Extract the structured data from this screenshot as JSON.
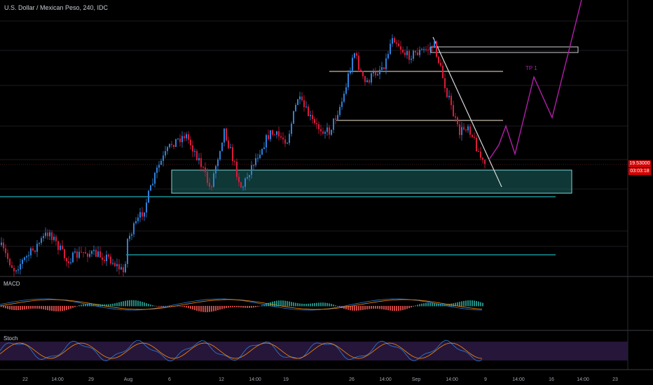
{
  "header": {
    "title": "U.S. Dollar / Mexican Peso, 240, IDC"
  },
  "price_axis": {
    "last_price": "19.53000",
    "countdown": "03:03:18"
  },
  "panels": {
    "macd": "MACD",
    "stoch": "Stoch"
  },
  "annotation": {
    "tp_label": "TP 1"
  },
  "time_axis": [
    "22",
    "14:00",
    "29",
    "Aug",
    "6",
    "12",
    "14:00",
    "19",
    "26",
    "14:00",
    "Sep",
    "14:00",
    "9",
    "14:00",
    "16",
    "14:00",
    "23"
  ],
  "colors": {
    "up": "#2f80d8",
    "down": "#d81b3a",
    "zone": "#1f7a78",
    "support_line": "#1ab1b8",
    "projection": "#b21ea8",
    "trendline": "#d9d9d9",
    "bg": "#000000",
    "stoch_band": "#2a1840"
  },
  "chart_data": {
    "type": "candlestick",
    "symbol": "USD/MXN",
    "timeframe": "240",
    "last_value": 19.53,
    "series": [
      {
        "name": "MACD",
        "type": "histogram"
      },
      {
        "name": "Stoch",
        "type": "line"
      }
    ]
  }
}
